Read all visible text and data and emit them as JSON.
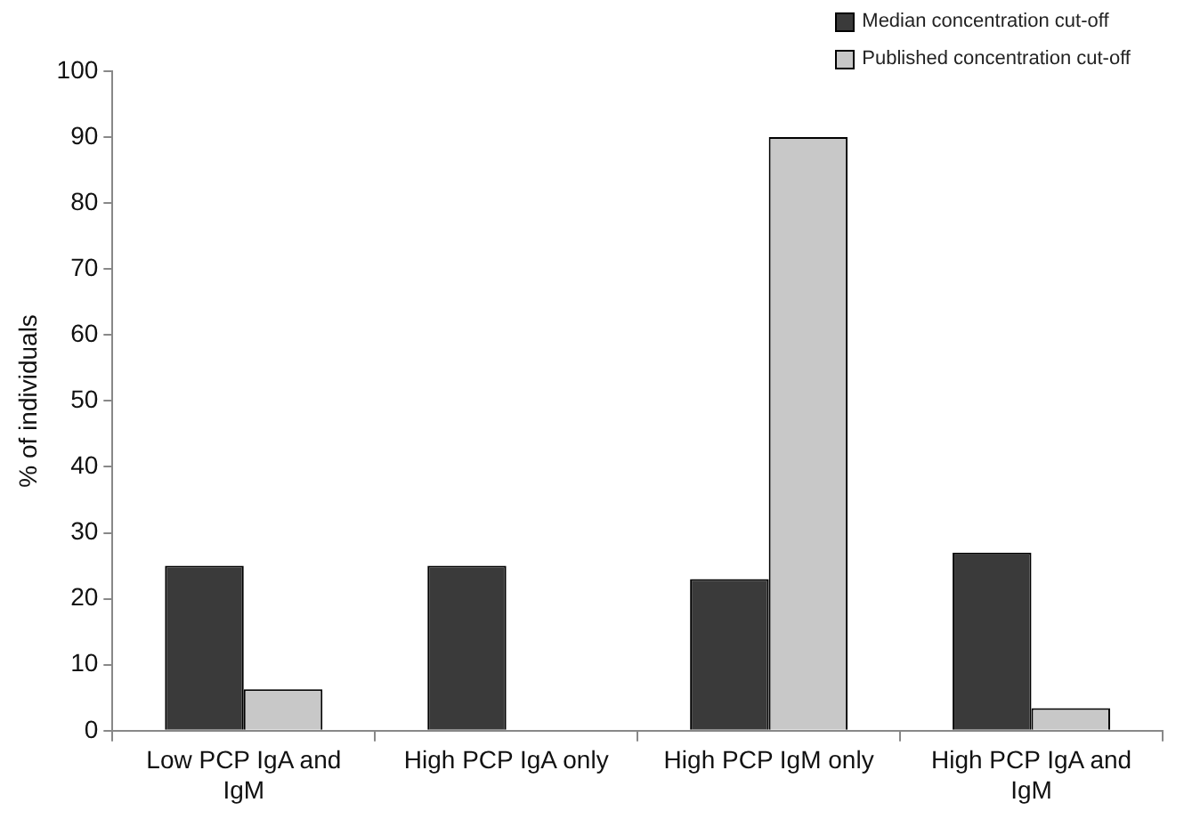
{
  "chart_data": {
    "type": "bar",
    "ylabel": "% of individuals",
    "categories": [
      "Low PCP IgA and IgM",
      "High PCP IgA only",
      "High PCP IgM only",
      "High PCP IgA and IgM"
    ],
    "series": [
      {
        "name": "Median concentration cut-off",
        "color": "#3a3a3a",
        "values": [
          25,
          25,
          23,
          27
        ]
      },
      {
        "name": "Published concentration cut-off",
        "color": "#c8c8c8",
        "values": [
          6.3,
          0,
          90,
          3.4
        ]
      }
    ],
    "ylim": [
      0,
      100
    ],
    "yticks": [
      0,
      10,
      20,
      30,
      40,
      50,
      60,
      70,
      80,
      90,
      100
    ],
    "grid": false,
    "legend": "top right"
  }
}
